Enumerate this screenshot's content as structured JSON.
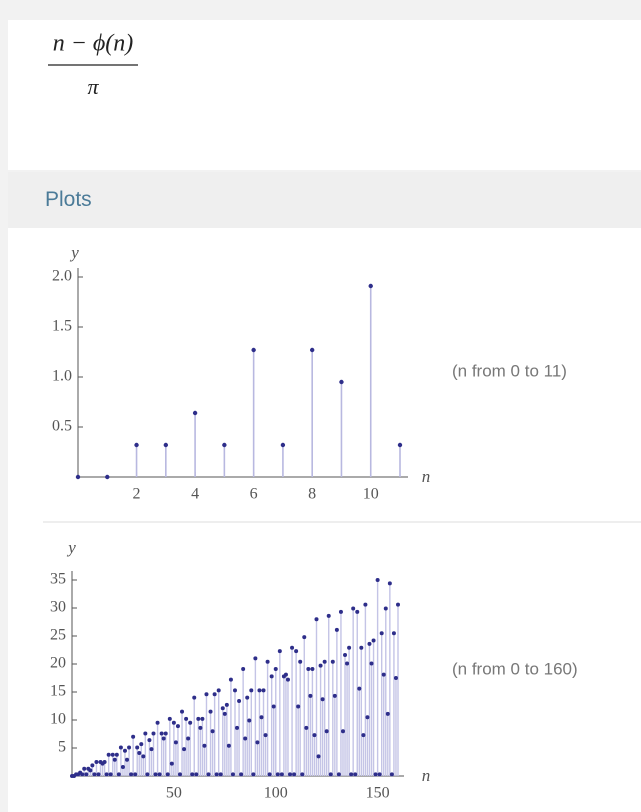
{
  "formula": {
    "numerator": "n − ϕ(n)",
    "denominator": "π"
  },
  "pod_title": "Plots",
  "chart_data": [
    {
      "type": "stem",
      "y_label": "y",
      "x_label": "n",
      "range_note": "(n from 0 to 11)",
      "color": "#2e2e8a",
      "stem_color": "#b8b8e0",
      "x": [
        0,
        1,
        2,
        3,
        4,
        5,
        6,
        7,
        8,
        9,
        10,
        11
      ],
      "values": [
        0,
        0,
        0.32,
        0.32,
        0.64,
        0.32,
        1.27,
        0.32,
        1.27,
        0.95,
        1.91,
        0.32
      ],
      "xlim": [
        0,
        11
      ],
      "ylim": [
        0,
        2
      ],
      "xticks": [
        2,
        4,
        6,
        8,
        10
      ],
      "yticks": [
        {
          "value": 2,
          "label": "2.0"
        },
        1.5,
        {
          "value": 1,
          "label": "1.0"
        },
        0.5
      ]
    },
    {
      "type": "stem",
      "y_label": "y",
      "x_label": "n",
      "range_note": "(n from 0 to 160)",
      "color": "#2e2e8a",
      "stem_color": "#c4c4e6",
      "x": [
        0,
        1,
        2,
        3,
        4,
        5,
        6,
        7,
        8,
        9,
        10,
        11,
        12,
        13,
        14,
        15,
        16,
        17,
        18,
        19,
        20,
        21,
        22,
        23,
        24,
        25,
        26,
        27,
        28,
        29,
        30,
        31,
        32,
        33,
        34,
        35,
        36,
        37,
        38,
        39,
        40,
        41,
        42,
        43,
        44,
        45,
        46,
        47,
        48,
        49,
        50,
        51,
        52,
        53,
        54,
        55,
        56,
        57,
        58,
        59,
        60,
        61,
        62,
        63,
        64,
        65,
        66,
        67,
        68,
        69,
        70,
        71,
        72,
        73,
        74,
        75,
        76,
        77,
        78,
        79,
        80,
        81,
        82,
        83,
        84,
        85,
        86,
        87,
        88,
        89,
        90,
        91,
        92,
        93,
        94,
        95,
        96,
        97,
        98,
        99,
        100,
        101,
        102,
        103,
        104,
        105,
        106,
        107,
        108,
        109,
        110,
        111,
        112,
        113,
        114,
        115,
        116,
        117,
        118,
        119,
        120,
        121,
        122,
        123,
        124,
        125,
        126,
        127,
        128,
        129,
        130,
        131,
        132,
        133,
        134,
        135,
        136,
        137,
        138,
        139,
        140,
        141,
        142,
        143,
        144,
        145,
        146,
        147,
        148,
        149,
        150,
        151,
        152,
        153,
        154,
        155,
        156,
        157,
        158,
        159,
        160
      ],
      "values": [
        0,
        0,
        0.3,
        0.3,
        0.6,
        0.3,
        1.3,
        0.3,
        1.3,
        1.0,
        1.9,
        0.3,
        2.5,
        0.3,
        2.5,
        2.2,
        2.5,
        0.3,
        3.8,
        0.3,
        3.8,
        2.9,
        3.8,
        0.3,
        5.1,
        1.6,
        4.5,
        2.9,
        5.1,
        0.3,
        7.0,
        0.3,
        5.1,
        4.1,
        5.7,
        3.5,
        7.6,
        0.3,
        6.4,
        4.8,
        7.6,
        0.3,
        9.5,
        0.3,
        7.6,
        6.7,
        7.6,
        0.3,
        10.2,
        2.2,
        9.5,
        6.0,
        8.9,
        0.3,
        11.5,
        4.8,
        10.2,
        6.7,
        9.5,
        0.3,
        14.0,
        0.3,
        10.2,
        8.6,
        10.2,
        5.4,
        14.6,
        0.3,
        11.5,
        8.0,
        14.6,
        0.3,
        15.3,
        0.3,
        12.1,
        11.1,
        12.7,
        5.4,
        17.2,
        0.3,
        15.3,
        8.6,
        13.4,
        0.3,
        19.1,
        6.7,
        14.0,
        9.9,
        15.3,
        0.3,
        21.0,
        6.0,
        15.3,
        10.5,
        15.3,
        7.3,
        20.4,
        0.3,
        17.8,
        12.4,
        19.1,
        0.3,
        22.3,
        0.3,
        17.8,
        18.1,
        17.2,
        0.3,
        22.9,
        0.3,
        22.3,
        12.4,
        20.4,
        0.3,
        24.8,
        8.6,
        19.1,
        14.3,
        19.1,
        7.3,
        28.0,
        3.5,
        19.7,
        13.7,
        20.4,
        8.0,
        28.6,
        0.3,
        20.4,
        14.3,
        26.1,
        0.3,
        29.3,
        8.0,
        21.6,
        20.1,
        22.9,
        0.3,
        29.9,
        0.3,
        29.3,
        15.6,
        22.9,
        7.3,
        30.6,
        10.5,
        23.6,
        20.1,
        24.2,
        0.3,
        35.0,
        0.3,
        25.5,
        18.1,
        29.9,
        11.1,
        34.4,
        0.3,
        25.5,
        17.5,
        30.6
      ],
      "xlim": [
        0,
        160
      ],
      "ylim": [
        0,
        35
      ],
      "xticks": [
        50,
        100,
        150
      ],
      "yticks": [
        35,
        30,
        25,
        20,
        15,
        10,
        5
      ]
    }
  ]
}
